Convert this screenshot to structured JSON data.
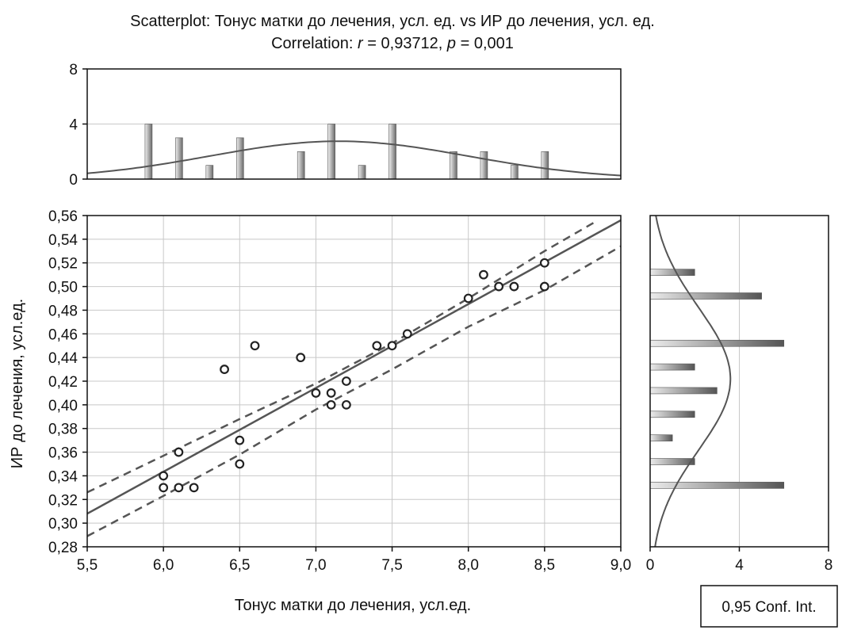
{
  "chart_data": {
    "type": "scatter",
    "title": "Scatterplot: Тонус матки до лечения, усл. ед. vs ИР до лечения, усл. ед.",
    "subtitle": {
      "prefix": "Correlation: ",
      "r_symbol": "r",
      "r_text": " = 0,93712, ",
      "p_symbol": "p",
      "p_text": " = 0,001"
    },
    "xlabel": "Тонус матки до лечения, усл.ед.",
    "ylabel": "ИР до лечения, усл.ед.",
    "xlim": [
      5.5,
      9.0
    ],
    "ylim": [
      0.28,
      0.56
    ],
    "x_ticks": [
      "5,5",
      "6,0",
      "6,5",
      "7,0",
      "7,5",
      "8,0",
      "8,5",
      "9,0"
    ],
    "y_ticks": [
      "0,28",
      "0,30",
      "0,32",
      "0,34",
      "0,36",
      "0,38",
      "0,40",
      "0,42",
      "0,44",
      "0,46",
      "0,48",
      "0,50",
      "0,52",
      "0,54",
      "0,56"
    ],
    "grid": true,
    "points": [
      {
        "x": 6.0,
        "y": 0.34
      },
      {
        "x": 6.0,
        "y": 0.33
      },
      {
        "x": 6.1,
        "y": 0.36
      },
      {
        "x": 6.1,
        "y": 0.33
      },
      {
        "x": 6.2,
        "y": 0.33
      },
      {
        "x": 6.4,
        "y": 0.43
      },
      {
        "x": 6.5,
        "y": 0.37
      },
      {
        "x": 6.5,
        "y": 0.35
      },
      {
        "x": 6.6,
        "y": 0.45
      },
      {
        "x": 6.9,
        "y": 0.44
      },
      {
        "x": 7.0,
        "y": 0.41
      },
      {
        "x": 7.1,
        "y": 0.41
      },
      {
        "x": 7.1,
        "y": 0.4
      },
      {
        "x": 7.2,
        "y": 0.42
      },
      {
        "x": 7.2,
        "y": 0.4
      },
      {
        "x": 7.4,
        "y": 0.45
      },
      {
        "x": 7.5,
        "y": 0.45
      },
      {
        "x": 7.6,
        "y": 0.46
      },
      {
        "x": 8.0,
        "y": 0.49
      },
      {
        "x": 8.1,
        "y": 0.51
      },
      {
        "x": 8.2,
        "y": 0.5
      },
      {
        "x": 8.3,
        "y": 0.5
      },
      {
        "x": 8.5,
        "y": 0.52
      },
      {
        "x": 8.5,
        "y": 0.5
      }
    ],
    "regression": {
      "from": [
        5.5,
        0.308
      ],
      "to": [
        9.0,
        0.556
      ]
    },
    "conf_upper": [
      [
        5.5,
        0.326
      ],
      [
        6.0,
        0.357
      ],
      [
        6.5,
        0.388
      ],
      [
        7.0,
        0.418
      ],
      [
        7.5,
        0.452
      ],
      [
        8.0,
        0.49
      ],
      [
        8.5,
        0.53
      ],
      [
        8.85,
        0.556
      ]
    ],
    "conf_lower": [
      [
        5.5,
        0.289
      ],
      [
        6.0,
        0.323
      ],
      [
        6.5,
        0.358
      ],
      [
        7.0,
        0.396
      ],
      [
        7.5,
        0.43
      ],
      [
        8.0,
        0.466
      ],
      [
        8.5,
        0.497
      ],
      [
        9.0,
        0.534
      ]
    ],
    "top_histogram": {
      "ylim": [
        0,
        8
      ],
      "y_ticks": [
        "0",
        "4",
        "8"
      ],
      "bars": [
        {
          "x": 5.9,
          "count": 4
        },
        {
          "x": 6.1,
          "count": 3
        },
        {
          "x": 6.3,
          "count": 1
        },
        {
          "x": 6.5,
          "count": 3
        },
        {
          "x": 6.9,
          "count": 2
        },
        {
          "x": 7.1,
          "count": 4
        },
        {
          "x": 7.3,
          "count": 1
        },
        {
          "x": 7.5,
          "count": 4
        },
        {
          "x": 7.9,
          "count": 2
        },
        {
          "x": 8.1,
          "count": 2
        },
        {
          "x": 8.3,
          "count": 1
        },
        {
          "x": 8.5,
          "count": 2
        }
      ],
      "normal_curve": {
        "mean": 7.15,
        "sd": 0.85,
        "peak": 2.75
      }
    },
    "right_histogram": {
      "xlim": [
        0,
        8
      ],
      "x_ticks": [
        "0",
        "4",
        "8"
      ],
      "bars": [
        {
          "y": 0.512,
          "count": 2
        },
        {
          "y": 0.492,
          "count": 5
        },
        {
          "y": 0.452,
          "count": 6
        },
        {
          "y": 0.432,
          "count": 2
        },
        {
          "y": 0.412,
          "count": 3
        },
        {
          "y": 0.392,
          "count": 2
        },
        {
          "y": 0.372,
          "count": 1
        },
        {
          "y": 0.352,
          "count": 2
        },
        {
          "y": 0.332,
          "count": 6
        }
      ],
      "normal_curve": {
        "mean": 0.422,
        "sd": 0.06,
        "peak": 3.6
      }
    },
    "legend": {
      "text": "0,95 Conf. Int.",
      "position": "bottom-right"
    }
  }
}
